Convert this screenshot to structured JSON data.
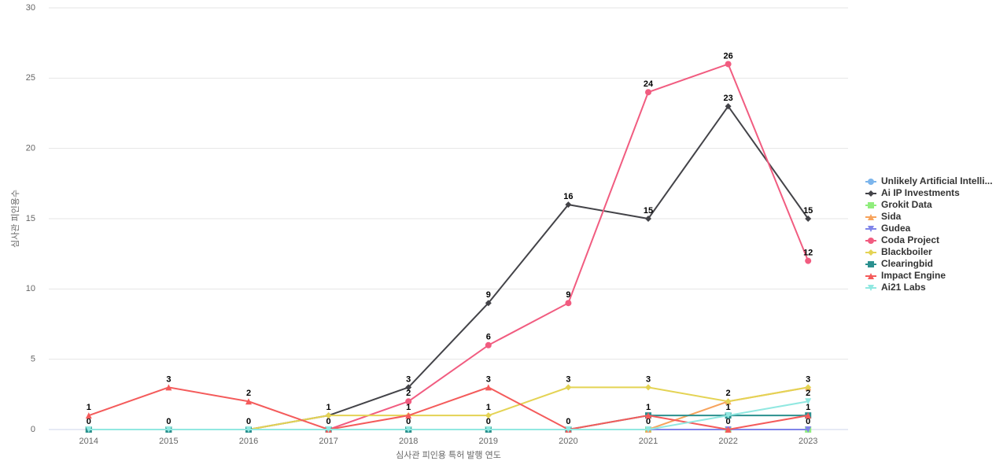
{
  "chart_data": {
    "type": "line",
    "x_label": "심사관 피인용 특허 발행 연도",
    "y_label": "심사관 피인용수",
    "categories": [
      "2014",
      "2015",
      "2016",
      "2017",
      "2018",
      "2019",
      "2020",
      "2021",
      "2022",
      "2023"
    ],
    "ylim": [
      0,
      30
    ],
    "yticks": [
      0,
      5,
      10,
      15,
      20,
      25,
      30
    ],
    "grid": true,
    "legend": "right",
    "data_labels": true,
    "series": [
      {
        "name": "Unlikely Artificial Intelli...",
        "color": "#7cb5ec",
        "marker": "circle",
        "values": [
          0,
          0,
          0,
          0,
          0,
          0,
          0,
          0,
          0,
          0
        ]
      },
      {
        "name": "Ai IP Investments",
        "color": "#434348",
        "marker": "diamond",
        "values": [
          0,
          0,
          0,
          1,
          3,
          9,
          16,
          15,
          23,
          15
        ]
      },
      {
        "name": "Grokit Data",
        "color": "#90ed7d",
        "marker": "square",
        "values": [
          0,
          0,
          0,
          0,
          0,
          0,
          0,
          0,
          0,
          0
        ]
      },
      {
        "name": "Sida",
        "color": "#f7a35c",
        "marker": "triangle",
        "values": [
          0,
          0,
          0,
          0,
          0,
          0,
          0,
          0,
          2,
          3
        ]
      },
      {
        "name": "Gudea",
        "color": "#8085e9",
        "marker": "triangle-down",
        "values": [
          0,
          0,
          0,
          0,
          0,
          0,
          0,
          0,
          0,
          0
        ]
      },
      {
        "name": "Coda Project",
        "color": "#f15c80",
        "marker": "circle",
        "values": [
          0,
          0,
          0,
          0,
          2,
          6,
          9,
          24,
          26,
          12
        ]
      },
      {
        "name": "Blackboiler",
        "color": "#e4d354",
        "marker": "diamond",
        "values": [
          0,
          0,
          0,
          1,
          1,
          1,
          3,
          3,
          2,
          3
        ]
      },
      {
        "name": "Clearingbid",
        "color": "#2b908f",
        "marker": "square",
        "values": [
          0,
          0,
          0,
          0,
          0,
          0,
          0,
          1,
          1,
          1
        ]
      },
      {
        "name": "Impact Engine",
        "color": "#f45b5b",
        "marker": "triangle",
        "values": [
          1,
          3,
          2,
          0,
          1,
          3,
          0,
          1,
          0,
          1
        ]
      },
      {
        "name": "Ai21 Labs",
        "color": "#91e8e1",
        "marker": "triangle-down",
        "values": [
          0,
          0,
          0,
          0,
          0,
          0,
          0,
          0,
          1,
          2
        ]
      }
    ]
  }
}
